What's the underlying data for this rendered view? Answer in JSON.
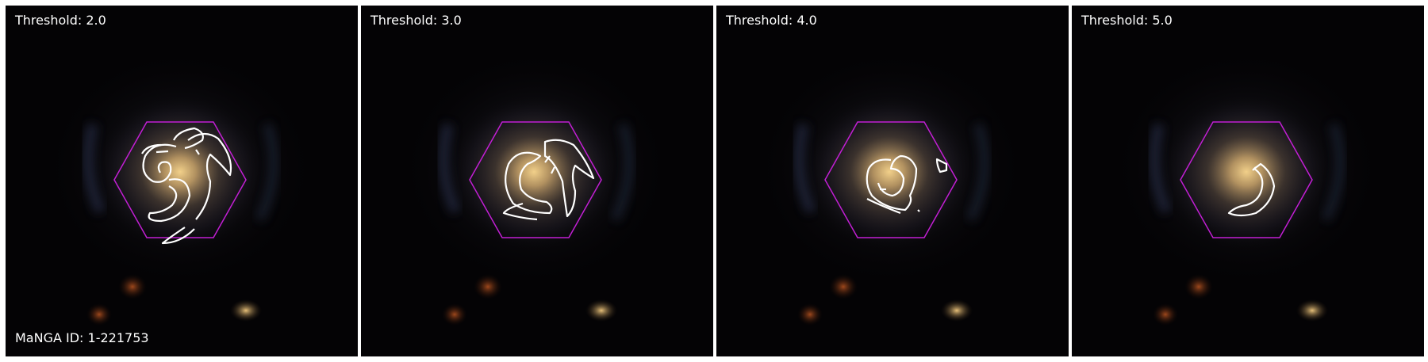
{
  "panels": [
    {
      "label": "Threshold: 2.0"
    },
    {
      "label": "Threshold: 3.0"
    },
    {
      "label": "Threshold: 4.0"
    },
    {
      "label": "Threshold: 5.0"
    }
  ],
  "manga_id": "MaNGA ID: 1-221753",
  "colors": {
    "hexagon": "#c21fd4",
    "contour": "#ffffff",
    "background": "#030203"
  }
}
